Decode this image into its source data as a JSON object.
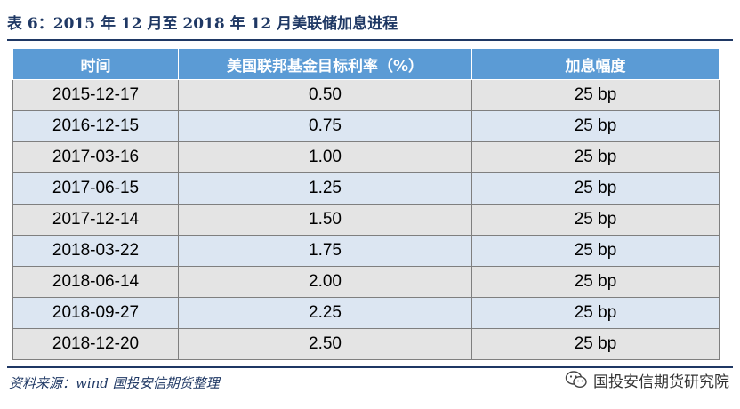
{
  "title": "表 6：2015 年 12 月至 2018 年 12 月美联储加息进程",
  "table": {
    "headers": [
      "时间",
      "美国联邦基金目标利率（%）",
      "加息幅度"
    ],
    "rows": [
      [
        "2015-12-17",
        "0.50",
        "25 bp"
      ],
      [
        "2016-12-15",
        "0.75",
        "25 bp"
      ],
      [
        "2017-03-16",
        "1.00",
        "25 bp"
      ],
      [
        "2017-06-15",
        "1.25",
        "25 bp"
      ],
      [
        "2017-12-14",
        "1.50",
        "25 bp"
      ],
      [
        "2018-03-22",
        "1.75",
        "25 bp"
      ],
      [
        "2018-06-14",
        "2.00",
        "25 bp"
      ],
      [
        "2018-09-27",
        "2.25",
        "25 bp"
      ],
      [
        "2018-12-20",
        "2.50",
        "25 bp"
      ]
    ]
  },
  "source": "资料来源：wind 国投安信期货整理",
  "watermark": {
    "text": "国投安信期货研究院",
    "icon": "wechat-icon"
  },
  "colors": {
    "header_bg": "#5b9bd5",
    "row_odd_bg": "#e4e4e4",
    "row_even_bg": "#dce6f2",
    "title_color": "#1f3864"
  }
}
